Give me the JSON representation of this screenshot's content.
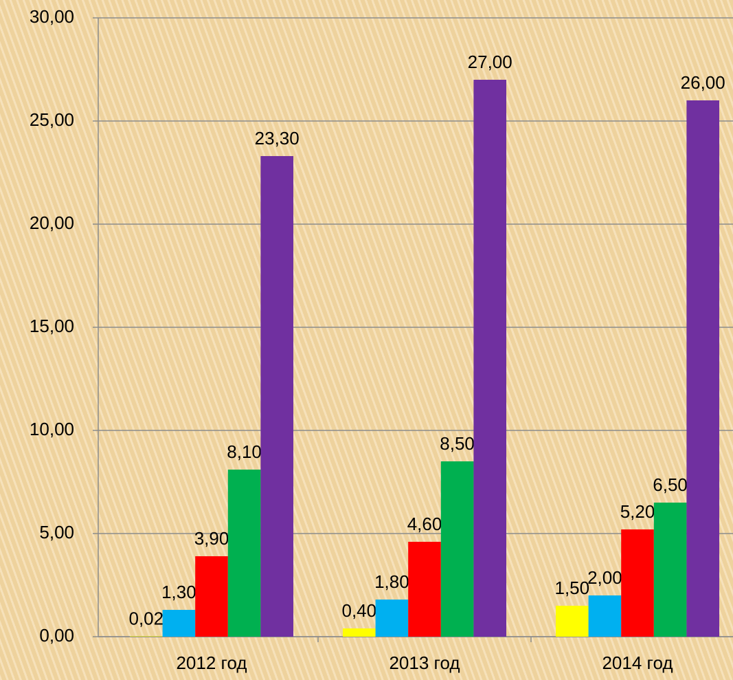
{
  "chart_data": {
    "type": "bar",
    "categories": [
      "2012 год",
      "2013 год",
      "2014 год"
    ],
    "series": [
      {
        "color": "#ffff00",
        "values": [
          0.02,
          0.4,
          1.5
        ],
        "value_labels": [
          "0,02",
          "0,40",
          "1,50"
        ]
      },
      {
        "color": "#00b0f0",
        "values": [
          1.3,
          1.8,
          2.0
        ],
        "value_labels": [
          "1,30",
          "1,80",
          "2,00"
        ]
      },
      {
        "color": "#ff0000",
        "values": [
          3.9,
          4.6,
          5.2
        ],
        "value_labels": [
          "3,90",
          "4,60",
          "5,20"
        ]
      },
      {
        "color": "#00b050",
        "values": [
          8.1,
          8.5,
          6.5
        ],
        "value_labels": [
          "8,10",
          "8,50",
          "6,50"
        ]
      },
      {
        "color": "#7030a0",
        "values": [
          23.3,
          27.0,
          26.0
        ],
        "value_labels": [
          "23,30",
          "27,00",
          "26,00"
        ]
      }
    ],
    "ylim": [
      0,
      30
    ],
    "yticks": [
      {
        "value": 0,
        "label": "0,00"
      },
      {
        "value": 5,
        "label": "5,00"
      },
      {
        "value": 10,
        "label": "10,00"
      },
      {
        "value": 15,
        "label": "15,00"
      },
      {
        "value": 20,
        "label": "20,00"
      },
      {
        "value": 25,
        "label": "25,00"
      },
      {
        "value": 30,
        "label": "30,00"
      }
    ],
    "grid": true
  }
}
